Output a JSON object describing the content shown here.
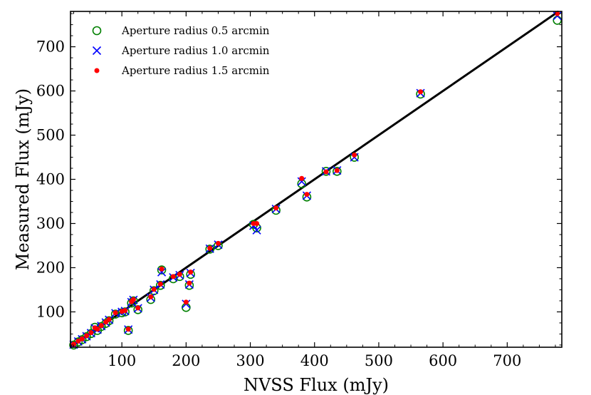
{
  "chart_data": {
    "type": "scatter",
    "title": "",
    "xlabel": "NVSS Flux (mJy)",
    "ylabel": "Measured Flux (mJy)",
    "xlim": [
      20,
      785
    ],
    "ylim": [
      20,
      780
    ],
    "xticks": [
      100,
      200,
      300,
      400,
      500,
      600,
      700
    ],
    "yticks": [
      100,
      200,
      300,
      400,
      500,
      600,
      700
    ],
    "grid": false,
    "legend_position": "top-left",
    "reference_line": {
      "slope": 1,
      "intercept": 0,
      "color": "#000000"
    },
    "series": [
      {
        "name": "Aperture radius 0.5 arcmin",
        "marker": "open-circle",
        "color": "#008000",
        "points": [
          [
            25,
            25
          ],
          [
            32,
            32
          ],
          [
            38,
            37
          ],
          [
            45,
            44
          ],
          [
            52,
            51
          ],
          [
            58,
            65
          ],
          [
            62,
            58
          ],
          [
            68,
            67
          ],
          [
            75,
            74
          ],
          [
            80,
            80
          ],
          [
            90,
            95
          ],
          [
            100,
            98
          ],
          [
            105,
            100
          ],
          [
            110,
            58
          ],
          [
            115,
            120
          ],
          [
            118,
            125
          ],
          [
            125,
            105
          ],
          [
            145,
            128
          ],
          [
            150,
            148
          ],
          [
            160,
            160
          ],
          [
            162,
            195
          ],
          [
            180,
            175
          ],
          [
            190,
            180
          ],
          [
            200,
            110
          ],
          [
            205,
            160
          ],
          [
            207,
            185
          ],
          [
            237,
            242
          ],
          [
            250,
            250
          ],
          [
            305,
            298
          ],
          [
            310,
            290
          ],
          [
            340,
            330
          ],
          [
            380,
            390
          ],
          [
            388,
            360
          ],
          [
            418,
            418
          ],
          [
            435,
            418
          ],
          [
            462,
            450
          ],
          [
            565,
            593
          ],
          [
            778,
            760
          ]
        ]
      },
      {
        "name": "Aperture radius 1.0 arcmin",
        "marker": "x",
        "color": "#0000ff",
        "points": [
          [
            25,
            26
          ],
          [
            32,
            33
          ],
          [
            38,
            38
          ],
          [
            45,
            45
          ],
          [
            52,
            52
          ],
          [
            58,
            63
          ],
          [
            62,
            60
          ],
          [
            68,
            68
          ],
          [
            75,
            76
          ],
          [
            80,
            82
          ],
          [
            90,
            97
          ],
          [
            100,
            100
          ],
          [
            105,
            102
          ],
          [
            110,
            60
          ],
          [
            115,
            122
          ],
          [
            118,
            127
          ],
          [
            125,
            108
          ],
          [
            145,
            132
          ],
          [
            150,
            150
          ],
          [
            160,
            162
          ],
          [
            162,
            190
          ],
          [
            180,
            178
          ],
          [
            190,
            183
          ],
          [
            200,
            118
          ],
          [
            205,
            162
          ],
          [
            207,
            188
          ],
          [
            237,
            243
          ],
          [
            250,
            252
          ],
          [
            305,
            295
          ],
          [
            310,
            285
          ],
          [
            340,
            333
          ],
          [
            380,
            395
          ],
          [
            388,
            363
          ],
          [
            418,
            418
          ],
          [
            435,
            420
          ],
          [
            462,
            450
          ],
          [
            565,
            595
          ],
          [
            778,
            770
          ]
        ]
      },
      {
        "name": "Aperture radius 1.5 arcmin",
        "marker": "dot",
        "color": "#ff0000",
        "points": [
          [
            25,
            27
          ],
          [
            32,
            34
          ],
          [
            38,
            39
          ],
          [
            45,
            46
          ],
          [
            52,
            53
          ],
          [
            58,
            64
          ],
          [
            62,
            61
          ],
          [
            68,
            69
          ],
          [
            75,
            77
          ],
          [
            80,
            83
          ],
          [
            90,
            98
          ],
          [
            100,
            101
          ],
          [
            105,
            103
          ],
          [
            110,
            61
          ],
          [
            115,
            123
          ],
          [
            118,
            128
          ],
          [
            125,
            109
          ],
          [
            145,
            134
          ],
          [
            150,
            151
          ],
          [
            160,
            163
          ],
          [
            162,
            197
          ],
          [
            180,
            180
          ],
          [
            190,
            185
          ],
          [
            200,
            122
          ],
          [
            205,
            165
          ],
          [
            207,
            190
          ],
          [
            237,
            244
          ],
          [
            250,
            255
          ],
          [
            305,
            300
          ],
          [
            310,
            300
          ],
          [
            340,
            335
          ],
          [
            380,
            402
          ],
          [
            388,
            366
          ],
          [
            418,
            417
          ],
          [
            435,
            420
          ],
          [
            462,
            455
          ],
          [
            565,
            598
          ],
          [
            778,
            775
          ]
        ]
      }
    ]
  }
}
